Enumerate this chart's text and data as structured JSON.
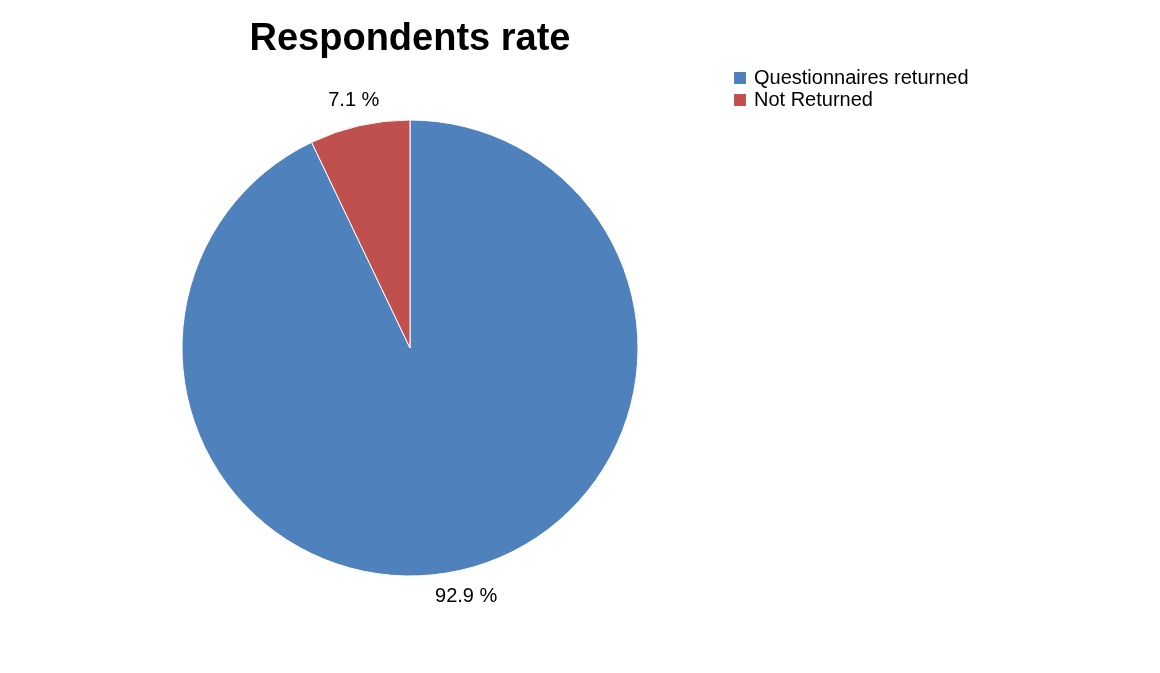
{
  "chart_data": {
    "type": "pie",
    "title": "Respondents rate",
    "categories": [
      "Questionnaires returned",
      "Not Returned"
    ],
    "values": [
      92.9,
      7.1
    ],
    "colors": [
      "#4f81bd",
      "#c0504d"
    ],
    "value_labels": [
      "92.9 %",
      "7.1 %"
    ],
    "legend": "right"
  }
}
